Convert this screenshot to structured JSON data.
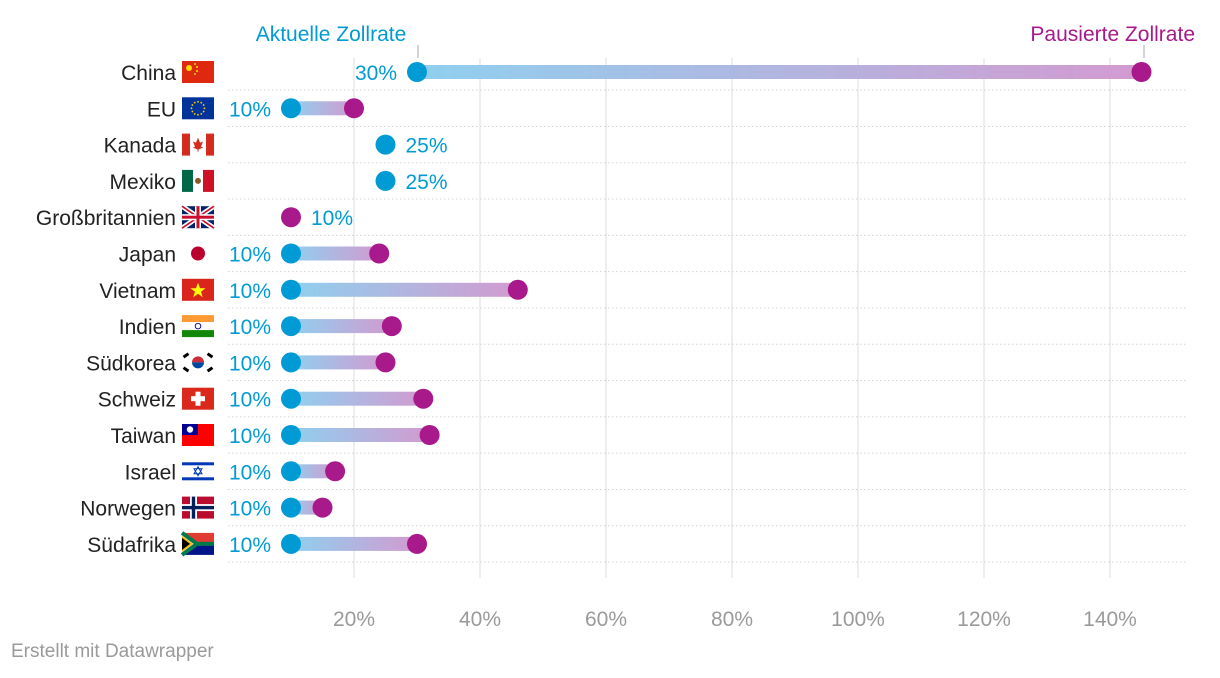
{
  "chart_data": {
    "type": "dumbbell",
    "legend": {
      "current_label": "Aktuelle Zollrate",
      "paused_label": "Pausierte Zollrate"
    },
    "colors": {
      "current": "#009bd5",
      "paused": "#a8198b",
      "grid": "#cccccc",
      "tick_text": "#9a9a9a"
    },
    "xlim": [
      0,
      150
    ],
    "x_ticks": [
      20,
      40,
      60,
      80,
      100,
      120,
      140
    ],
    "x_tick_labels": [
      "20%",
      "40%",
      "60%",
      "80%",
      "100%",
      "120%",
      "140%"
    ],
    "grid": true,
    "rows": [
      {
        "country": "China",
        "flag": "china-flag",
        "current": 30,
        "paused": 145,
        "label": "30%",
        "label_side": "left"
      },
      {
        "country": "EU",
        "flag": "eu-flag",
        "current": 10,
        "paused": 20,
        "label": "10%",
        "label_side": "left"
      },
      {
        "country": "Kanada",
        "flag": "canada-flag",
        "current": 25,
        "paused": null,
        "label": "25%",
        "label_side": "right"
      },
      {
        "country": "Mexiko",
        "flag": "mexico-flag",
        "current": 25,
        "paused": null,
        "label": "25%",
        "label_side": "right"
      },
      {
        "country": "Großbritannien",
        "flag": "uk-flag",
        "current": null,
        "paused": 10,
        "label": "10%",
        "label_side": "right"
      },
      {
        "country": "Japan",
        "flag": "japan-flag",
        "current": 10,
        "paused": 24,
        "label": "10%",
        "label_side": "left"
      },
      {
        "country": "Vietnam",
        "flag": "vietnam-flag",
        "current": 10,
        "paused": 46,
        "label": "10%",
        "label_side": "left"
      },
      {
        "country": "Indien",
        "flag": "india-flag",
        "current": 10,
        "paused": 26,
        "label": "10%",
        "label_side": "left"
      },
      {
        "country": "Südkorea",
        "flag": "south-korea-flag",
        "current": 10,
        "paused": 25,
        "label": "10%",
        "label_side": "left"
      },
      {
        "country": "Schweiz",
        "flag": "switzerland-flag",
        "current": 10,
        "paused": 31,
        "label": "10%",
        "label_side": "left"
      },
      {
        "country": "Taiwan",
        "flag": "taiwan-flag",
        "current": 10,
        "paused": 32,
        "label": "10%",
        "label_side": "left"
      },
      {
        "country": "Israel",
        "flag": "israel-flag",
        "current": 10,
        "paused": 17,
        "label": "10%",
        "label_side": "left"
      },
      {
        "country": "Norwegen",
        "flag": "norway-flag",
        "current": 10,
        "paused": 15,
        "label": "10%",
        "label_side": "left"
      },
      {
        "country": "Südafrika",
        "flag": "south-africa-flag",
        "current": 10,
        "paused": 30,
        "label": "10%",
        "label_side": "left"
      }
    ]
  },
  "footer": {
    "credit": "Erstellt mit Datawrapper"
  }
}
